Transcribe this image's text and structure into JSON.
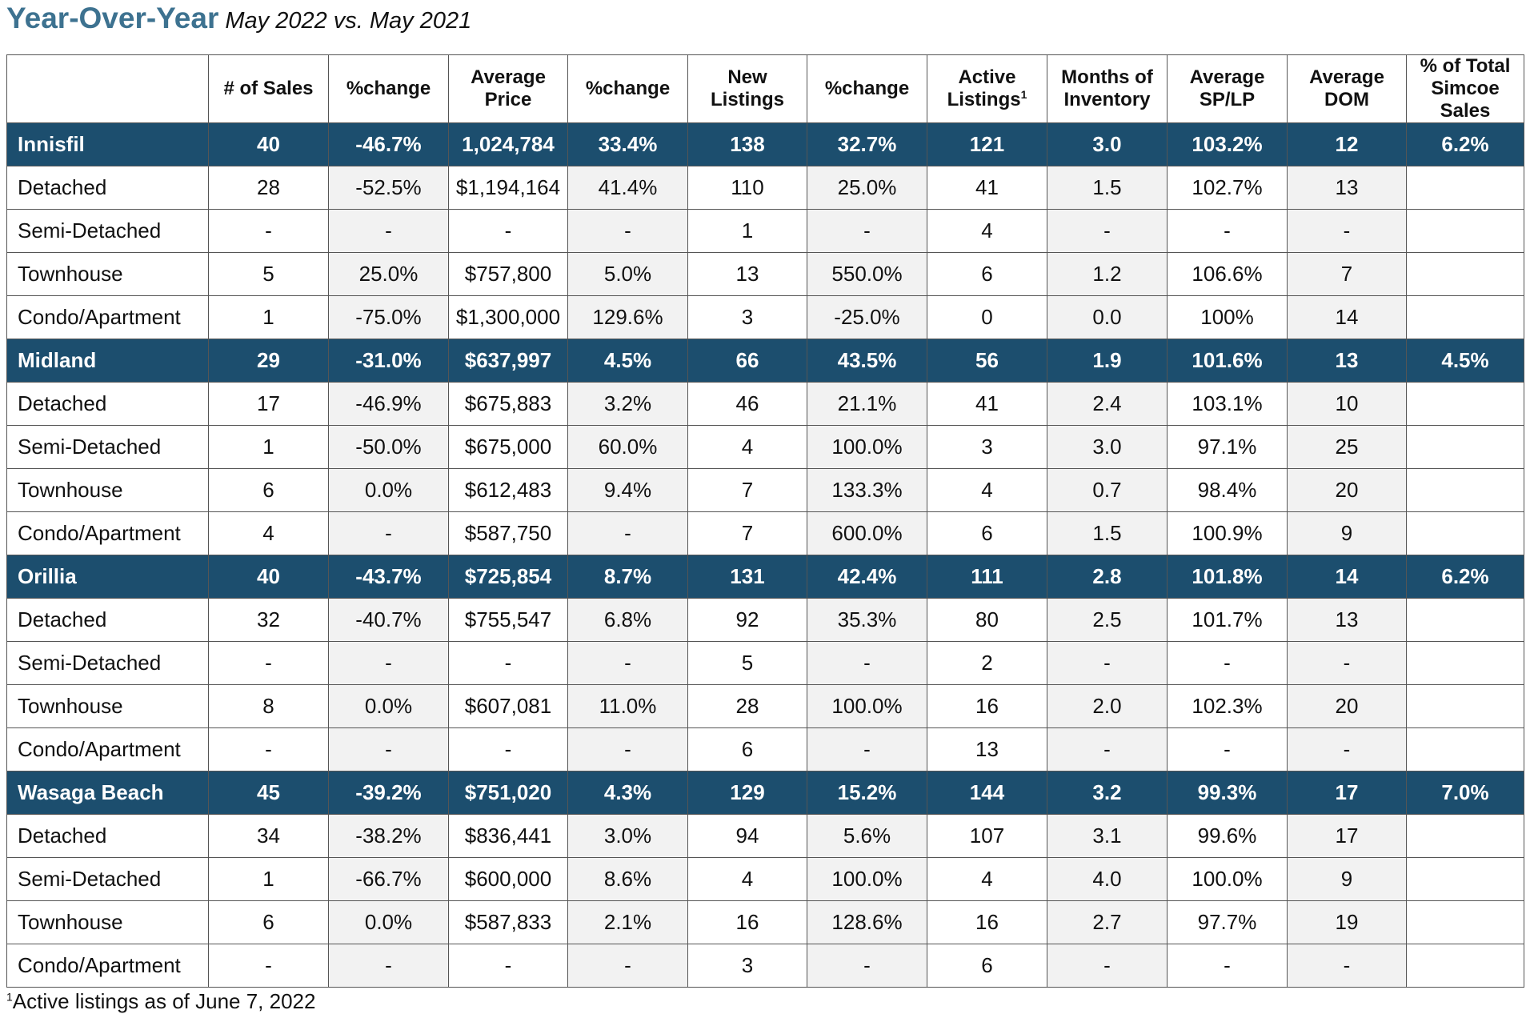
{
  "title": {
    "main": "Year-Over-Year",
    "sub": "May 2022 vs. May 2021"
  },
  "table": {
    "headers": [
      "",
      "# of Sales",
      "%change",
      "Average Price",
      "%change",
      "New Listings",
      "%change",
      "Active Listings",
      "Months of Inventory",
      "Average SP/LP",
      "Average DOM",
      "% of Total Simcoe Sales"
    ],
    "active_listings_footnote_mark": "1",
    "rows": [
      {
        "type": "region",
        "cells": [
          "Innisfil",
          "40",
          "-46.7%",
          "1,024,784",
          "33.4%",
          "138",
          "32.7%",
          "121",
          "3.0",
          "103.2%",
          "12",
          "6.2%"
        ]
      },
      {
        "type": "sub",
        "cells": [
          "Detached",
          "28",
          "-52.5%",
          "$1,194,164",
          "41.4%",
          "110",
          "25.0%",
          "41",
          "1.5",
          "102.7%",
          "13",
          ""
        ]
      },
      {
        "type": "sub",
        "cells": [
          "Semi-Detached",
          "-",
          "-",
          "-",
          "-",
          "1",
          "-",
          "4",
          "-",
          "-",
          "-",
          ""
        ]
      },
      {
        "type": "sub",
        "cells": [
          "Townhouse",
          "5",
          "25.0%",
          "$757,800",
          "5.0%",
          "13",
          "550.0%",
          "6",
          "1.2",
          "106.6%",
          "7",
          ""
        ]
      },
      {
        "type": "sub",
        "cells": [
          "Condo/Apartment",
          "1",
          "-75.0%",
          "$1,300,000",
          "129.6%",
          "3",
          "-25.0%",
          "0",
          "0.0",
          "100%",
          "14",
          ""
        ]
      },
      {
        "type": "region",
        "cells": [
          "Midland",
          "29",
          "-31.0%",
          "$637,997",
          "4.5%",
          "66",
          "43.5%",
          "56",
          "1.9",
          "101.6%",
          "13",
          "4.5%"
        ]
      },
      {
        "type": "sub",
        "cells": [
          "Detached",
          "17",
          "-46.9%",
          "$675,883",
          "3.2%",
          "46",
          "21.1%",
          "41",
          "2.4",
          "103.1%",
          "10",
          ""
        ]
      },
      {
        "type": "sub",
        "cells": [
          "Semi-Detached",
          "1",
          "-50.0%",
          "$675,000",
          "60.0%",
          "4",
          "100.0%",
          "3",
          "3.0",
          "97.1%",
          "25",
          ""
        ]
      },
      {
        "type": "sub",
        "cells": [
          "Townhouse",
          "6",
          "0.0%",
          "$612,483",
          "9.4%",
          "7",
          "133.3%",
          "4",
          "0.7",
          "98.4%",
          "20",
          ""
        ]
      },
      {
        "type": "sub",
        "cells": [
          "Condo/Apartment",
          "4",
          "-",
          "$587,750",
          "-",
          "7",
          "600.0%",
          "6",
          "1.5",
          "100.9%",
          "9",
          ""
        ]
      },
      {
        "type": "region",
        "cells": [
          "Orillia",
          "40",
          "-43.7%",
          "$725,854",
          "8.7%",
          "131",
          "42.4%",
          "111",
          "2.8",
          "101.8%",
          "14",
          "6.2%"
        ]
      },
      {
        "type": "sub",
        "cells": [
          "Detached",
          "32",
          "-40.7%",
          "$755,547",
          "6.8%",
          "92",
          "35.3%",
          "80",
          "2.5",
          "101.7%",
          "13",
          ""
        ]
      },
      {
        "type": "sub",
        "cells": [
          "Semi-Detached",
          "-",
          "-",
          "-",
          "-",
          "5",
          "-",
          "2",
          "-",
          "-",
          "-",
          ""
        ]
      },
      {
        "type": "sub",
        "cells": [
          "Townhouse",
          "8",
          "0.0%",
          "$607,081",
          "11.0%",
          "28",
          "100.0%",
          "16",
          "2.0",
          "102.3%",
          "20",
          ""
        ]
      },
      {
        "type": "sub",
        "cells": [
          "Condo/Apartment",
          "-",
          "-",
          "-",
          "-",
          "6",
          "-",
          "13",
          "-",
          "-",
          "-",
          ""
        ]
      },
      {
        "type": "region",
        "cells": [
          "Wasaga Beach",
          "45",
          "-39.2%",
          "$751,020",
          "4.3%",
          "129",
          "15.2%",
          "144",
          "3.2",
          "99.3%",
          "17",
          "7.0%"
        ]
      },
      {
        "type": "sub",
        "cells": [
          "Detached",
          "34",
          "-38.2%",
          "$836,441",
          "3.0%",
          "94",
          "5.6%",
          "107",
          "3.1",
          "99.6%",
          "17",
          ""
        ]
      },
      {
        "type": "sub",
        "cells": [
          "Semi-Detached",
          "1",
          "-66.7%",
          "$600,000",
          "8.6%",
          "4",
          "100.0%",
          "4",
          "4.0",
          "100.0%",
          "9",
          ""
        ]
      },
      {
        "type": "sub",
        "cells": [
          "Townhouse",
          "6",
          "0.0%",
          "$587,833",
          "2.1%",
          "16",
          "128.6%",
          "16",
          "2.7",
          "97.7%",
          "19",
          ""
        ]
      },
      {
        "type": "sub",
        "cells": [
          "Condo/Apartment",
          "-",
          "-",
          "-",
          "-",
          "3",
          "-",
          "6",
          "-",
          "-",
          "-",
          ""
        ]
      }
    ]
  },
  "footnote": {
    "mark": "1",
    "text": "Active listings as of June 7, 2022"
  },
  "colors": {
    "title": "#3d7290",
    "region_row_bg": "#1c4e6e",
    "region_row_text": "#ffffff",
    "shaded_cell_bg": "#f2f2f2",
    "border": "#555555"
  }
}
